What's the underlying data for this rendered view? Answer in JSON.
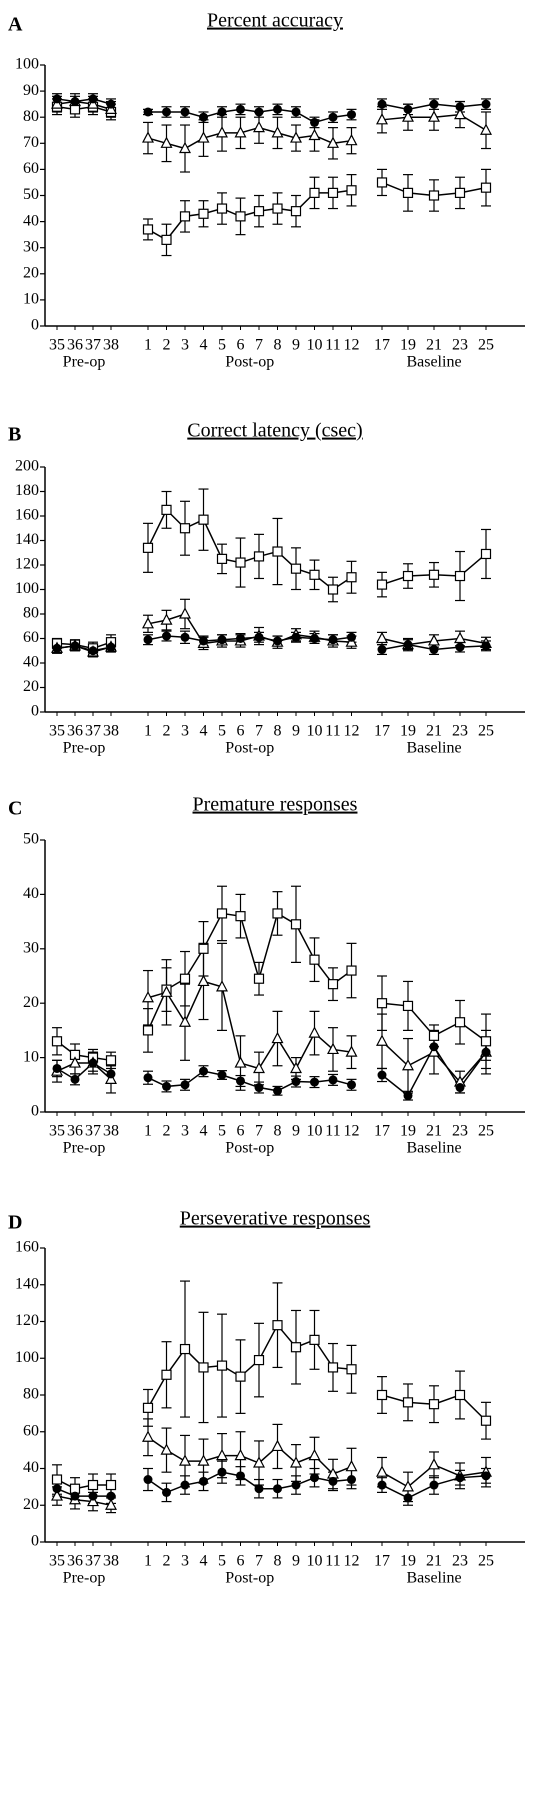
{
  "chart_data": [
    {
      "type": "line",
      "label": "A",
      "title": "Percent accuracy",
      "groups": [
        {
          "label": "Pre-op",
          "categories": [
            "35",
            "36",
            "37",
            "38"
          ]
        },
        {
          "label": "Post-op",
          "categories": [
            "1",
            "2",
            "3",
            "4",
            "5",
            "6",
            "7",
            "8",
            "9",
            "10",
            "11",
            "12"
          ]
        },
        {
          "label": "Baseline",
          "categories": [
            "17",
            "19",
            "21",
            "23",
            "25"
          ]
        }
      ],
      "ylim": [
        0,
        100
      ],
      "yticks": [
        0,
        10,
        20,
        30,
        40,
        50,
        60,
        70,
        80,
        90,
        100
      ],
      "series": [
        {
          "marker": "circle",
          "color": "#000000",
          "values": [
            87,
            86,
            87,
            85,
            82,
            82,
            82,
            80,
            82,
            83,
            82,
            83,
            82,
            78,
            80,
            81,
            85,
            83,
            85,
            84,
            85
          ],
          "errors": [
            2,
            2,
            2,
            2,
            1,
            2,
            2,
            2,
            2,
            2,
            2,
            2,
            2,
            2,
            2,
            2,
            2,
            2,
            2,
            2,
            2
          ]
        },
        {
          "marker": "triangle",
          "color": "#000000",
          "values": [
            85,
            86,
            85,
            83,
            72,
            70,
            68,
            72,
            74,
            74,
            76,
            74,
            72,
            73,
            70,
            71,
            79,
            80,
            80,
            81,
            75
          ],
          "errors": [
            3,
            3,
            3,
            3,
            6,
            7,
            9,
            7,
            7,
            6,
            6,
            6,
            5,
            6,
            6,
            5,
            5,
            5,
            5,
            5,
            7
          ]
        },
        {
          "marker": "square",
          "color": "#000000",
          "values": [
            84,
            83,
            84,
            82,
            37,
            33,
            42,
            43,
            45,
            42,
            44,
            45,
            44,
            51,
            51,
            52,
            55,
            51,
            50,
            51,
            53
          ],
          "errors": [
            3,
            3,
            3,
            3,
            4,
            6,
            6,
            5,
            6,
            7,
            6,
            6,
            6,
            6,
            6,
            6,
            5,
            7,
            6,
            6,
            7
          ]
        }
      ]
    },
    {
      "type": "line",
      "label": "B",
      "title": "Correct latency (csec)",
      "groups": [
        {
          "label": "Pre-op",
          "categories": [
            "35",
            "36",
            "37",
            "38"
          ]
        },
        {
          "label": "Post-op",
          "categories": [
            "1",
            "2",
            "3",
            "4",
            "5",
            "6",
            "7",
            "8",
            "9",
            "10",
            "11",
            "12"
          ]
        },
        {
          "label": "Baseline",
          "categories": [
            "17",
            "19",
            "21",
            "23",
            "25"
          ]
        }
      ],
      "ylim": [
        0,
        200
      ],
      "yticks": [
        0,
        20,
        40,
        60,
        80,
        100,
        120,
        140,
        160,
        180,
        200
      ],
      "series": [
        {
          "marker": "circle",
          "color": "#000000",
          "values": [
            52,
            54,
            50,
            53,
            59,
            62,
            61,
            58,
            59,
            60,
            61,
            58,
            61,
            60,
            59,
            61,
            51,
            55,
            51,
            53,
            54
          ],
          "errors": [
            4,
            4,
            4,
            4,
            4,
            4,
            5,
            4,
            4,
            4,
            4,
            4,
            4,
            4,
            4,
            4,
            4,
            4,
            4,
            4,
            4
          ]
        },
        {
          "marker": "triangle",
          "color": "#000000",
          "values": [
            52,
            54,
            49,
            53,
            72,
            75,
            80,
            56,
            58,
            58,
            62,
            57,
            63,
            61,
            58,
            57,
            60,
            55,
            58,
            60,
            56
          ],
          "errors": [
            4,
            4,
            4,
            4,
            7,
            8,
            12,
            5,
            5,
            5,
            7,
            5,
            5,
            5,
            5,
            5,
            5,
            5,
            5,
            6,
            5
          ]
        },
        {
          "marker": "square",
          "color": "#000000",
          "values": [
            56,
            55,
            52,
            57,
            134,
            165,
            150,
            157,
            125,
            122,
            127,
            131,
            117,
            112,
            100,
            110,
            104,
            111,
            112,
            111,
            129
          ],
          "errors": [
            4,
            4,
            5,
            6,
            20,
            15,
            22,
            25,
            12,
            20,
            18,
            27,
            17,
            12,
            10,
            13,
            10,
            10,
            10,
            20,
            20
          ]
        }
      ]
    },
    {
      "type": "line",
      "label": "C",
      "title": "Premature responses",
      "groups": [
        {
          "label": "Pre-op",
          "categories": [
            "35",
            "36",
            "37",
            "38"
          ]
        },
        {
          "label": "Post-op",
          "categories": [
            "1",
            "2",
            "3",
            "4",
            "5",
            "6",
            "7",
            "8",
            "9",
            "10",
            "11",
            "12"
          ]
        },
        {
          "label": "Baseline",
          "categories": [
            "17",
            "19",
            "21",
            "23",
            "25"
          ]
        }
      ],
      "ylim": [
        0,
        50
      ],
      "yticks": [
        0,
        10,
        20,
        30,
        40,
        50
      ],
      "series": [
        {
          "marker": "circle",
          "color": "#000000",
          "values": [
            8,
            6,
            9,
            7,
            6.3,
            4.7,
            5,
            7.5,
            6.8,
            5.7,
            4.5,
            3.9,
            5.6,
            5.5,
            5.9,
            5,
            6.8,
            3,
            12,
            4.5,
            11
          ],
          "errors": [
            1.5,
            1,
            1.5,
            1.5,
            1.2,
            1,
            1,
            1,
            0.8,
            1,
            1,
            0.8,
            1,
            1,
            1,
            1,
            1.2,
            0.8,
            1.5,
            1,
            1.5
          ]
        },
        {
          "marker": "triangle",
          "color": "#000000",
          "values": [
            7.5,
            9,
            9,
            6,
            21,
            22,
            16.5,
            24,
            23,
            9,
            8,
            13.5,
            8,
            14.5,
            11.5,
            11,
            13,
            8.5,
            11,
            5.5,
            11
          ],
          "errors": [
            2,
            2,
            2,
            2.5,
            5,
            6,
            7,
            7,
            8,
            5,
            3,
            5,
            2,
            4,
            4,
            3,
            5,
            5,
            4,
            2,
            4
          ]
        },
        {
          "marker": "square",
          "color": "#000000",
          "values": [
            13,
            10.5,
            10,
            9.5,
            15,
            22.5,
            24.5,
            30,
            36.5,
            36,
            24.5,
            36.5,
            34.5,
            28,
            23.5,
            26,
            20,
            19.5,
            14,
            16.5,
            13
          ],
          "errors": [
            2.5,
            2,
            1.5,
            1.5,
            4,
            4,
            5,
            5,
            5,
            4,
            3,
            4,
            7,
            4,
            3,
            5,
            5,
            4.5,
            2,
            4,
            5
          ]
        }
      ]
    },
    {
      "type": "line",
      "label": "D",
      "title": "Perseverative responses",
      "groups": [
        {
          "label": "Pre-op",
          "categories": [
            "35",
            "36",
            "37",
            "38"
          ]
        },
        {
          "label": "Post-op",
          "categories": [
            "1",
            "2",
            "3",
            "4",
            "5",
            "6",
            "7",
            "8",
            "9",
            "10",
            "11",
            "12"
          ]
        },
        {
          "label": "Baseline",
          "categories": [
            "17",
            "19",
            "21",
            "23",
            "25"
          ]
        }
      ],
      "ylim": [
        0,
        160
      ],
      "yticks": [
        0,
        20,
        40,
        60,
        80,
        100,
        120,
        140,
        160
      ],
      "series": [
        {
          "marker": "circle",
          "color": "#000000",
          "values": [
            29,
            25,
            25,
            25,
            34,
            27,
            31,
            33,
            38,
            36,
            29,
            29,
            31,
            35,
            33,
            34,
            31,
            24,
            31,
            35,
            36
          ],
          "errors": [
            4,
            4,
            4,
            4,
            6,
            5,
            5,
            5,
            6,
            5,
            5,
            5,
            5,
            5,
            5,
            5,
            4,
            4,
            5,
            4,
            4
          ]
        },
        {
          "marker": "triangle",
          "color": "#000000",
          "values": [
            25,
            23,
            22,
            20,
            57,
            50,
            44,
            44,
            47,
            47,
            43,
            52,
            43,
            47,
            37,
            41,
            38,
            30,
            42,
            36,
            38
          ],
          "errors": [
            5,
            5,
            5,
            4,
            10,
            12,
            14,
            12,
            12,
            13,
            12,
            12,
            10,
            10,
            8,
            10,
            8,
            8,
            7,
            7,
            8
          ]
        },
        {
          "marker": "square",
          "color": "#000000",
          "values": [
            34,
            29,
            31,
            31,
            73,
            91,
            105,
            95,
            96,
            90,
            99,
            118,
            106,
            110,
            95,
            94,
            80,
            76,
            75,
            80,
            66
          ],
          "errors": [
            8,
            6,
            6,
            6,
            10,
            18,
            37,
            30,
            28,
            20,
            20,
            23,
            20,
            16,
            13,
            13,
            10,
            10,
            10,
            13,
            10
          ]
        }
      ]
    }
  ]
}
